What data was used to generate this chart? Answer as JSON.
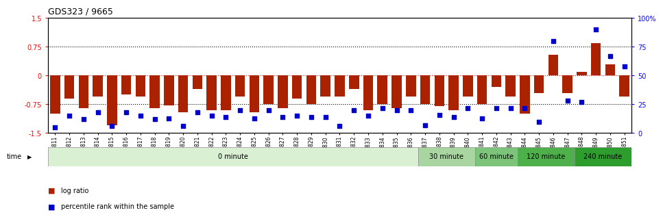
{
  "title": "GDS323 / 9665",
  "samples": [
    "GSM5811",
    "GSM5812",
    "GSM5813",
    "GSM5814",
    "GSM5815",
    "GSM5816",
    "GSM5817",
    "GSM5818",
    "GSM5819",
    "GSM5820",
    "GSM5821",
    "GSM5822",
    "GSM5823",
    "GSM5824",
    "GSM5825",
    "GSM5826",
    "GSM5827",
    "GSM5828",
    "GSM5829",
    "GSM5830",
    "GSM5831",
    "GSM5832",
    "GSM5833",
    "GSM5834",
    "GSM5835",
    "GSM5836",
    "GSM5837",
    "GSM5838",
    "GSM5839",
    "GSM5840",
    "GSM5841",
    "GSM5842",
    "GSM5843",
    "GSM5844",
    "GSM5845",
    "GSM5846",
    "GSM5847",
    "GSM5848",
    "GSM5849",
    "GSM5850",
    "GSM5851"
  ],
  "log_ratio": [
    -1.0,
    -0.6,
    -0.85,
    -0.55,
    -1.3,
    -0.5,
    -0.55,
    -0.85,
    -0.78,
    -0.95,
    -0.35,
    -0.9,
    -0.9,
    -0.55,
    -0.95,
    -0.75,
    -0.85,
    -0.6,
    -0.75,
    -0.55,
    -0.55,
    -0.35,
    -0.9,
    -0.75,
    -0.85,
    -0.55,
    -0.75,
    -0.8,
    -0.9,
    -0.55,
    -0.75,
    -0.3,
    -0.55,
    -1.0,
    -0.45,
    0.55,
    -0.45,
    0.1,
    0.85,
    0.3,
    -0.55
  ],
  "percentile": [
    5,
    15,
    12,
    18,
    6,
    18,
    15,
    12,
    13,
    6,
    18,
    15,
    14,
    20,
    13,
    20,
    14,
    15,
    14,
    14,
    6,
    20,
    15,
    22,
    20,
    20,
    7,
    16,
    14,
    22,
    13,
    22,
    22,
    22,
    10,
    80,
    28,
    27,
    90,
    67,
    58
  ],
  "time_groups": [
    {
      "label": "0 minute",
      "start": 0,
      "end": 26,
      "color": "#d9f0d3"
    },
    {
      "label": "30 minute",
      "start": 26,
      "end": 30,
      "color": "#a8d5a0"
    },
    {
      "label": "60 minute",
      "start": 30,
      "end": 33,
      "color": "#7cc47a"
    },
    {
      "label": "120 minute",
      "start": 33,
      "end": 37,
      "color": "#4db04a"
    },
    {
      "label": "240 minute",
      "start": 37,
      "end": 41,
      "color": "#2d9e2d"
    }
  ],
  "bar_color": "#aa2200",
  "dot_color": "#0000cc",
  "ylim": [
    -1.5,
    1.5
  ],
  "y2lim": [
    0,
    100
  ],
  "background_color": "#ffffff"
}
